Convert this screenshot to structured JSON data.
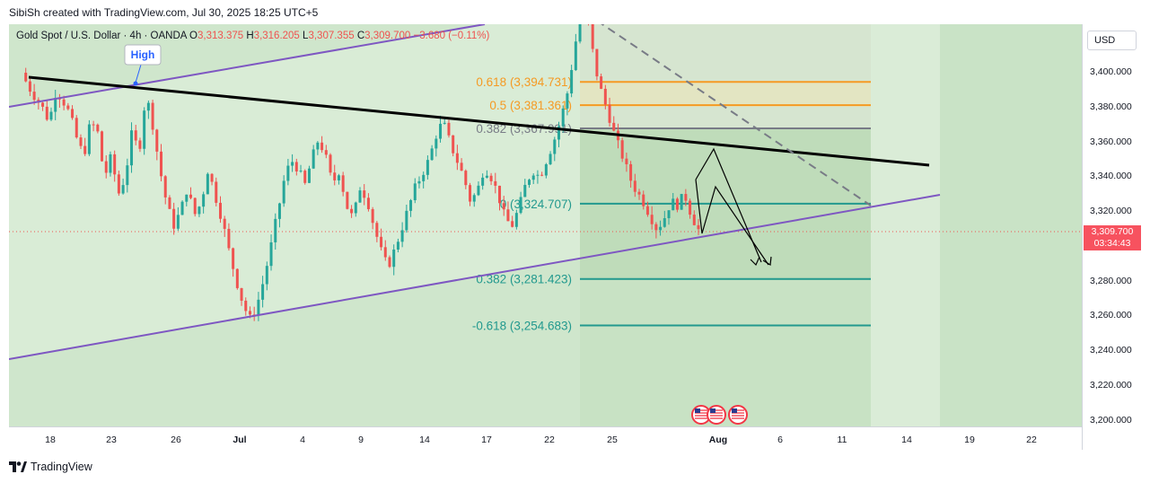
{
  "caption": "SibiSh created with TradingView.com, Jul 30, 2025 18:25 UTC+5",
  "symbol": {
    "name": "Gold Spot / U.S. Dollar · 4h · OANDA",
    "open_label": "O",
    "open": "3,313.375",
    "high_label": "H",
    "high": "3,316.205",
    "low_label": "L",
    "low": "3,307.355",
    "close_label": "C",
    "close": "3,309.700",
    "change": "−3.680 (−0.11%)"
  },
  "currency": "USD",
  "price_badge": {
    "price": "3,309.700",
    "countdown": "03:34:43"
  },
  "brand": "TradingView",
  "colors": {
    "up": "#26a69a",
    "down": "#ef5350",
    "channel": "#7e57c2",
    "trendline": "#000000",
    "fib_orange": "#f59a23",
    "fib_gray": "#787b86",
    "fib_teal": "#22998e"
  },
  "chart_data": {
    "type": "candlestick",
    "y_ticks": [
      "3,400.000",
      "3,380.000",
      "3,360.000",
      "3,340.000",
      "3,320.000",
      "3,300.000",
      "3,280.000",
      "3,260.000",
      "3,240.000",
      "3,220.000",
      "3,200.000"
    ],
    "x_ticks": [
      {
        "label": "18",
        "bold": false
      },
      {
        "label": "23",
        "bold": false
      },
      {
        "label": "26",
        "bold": false
      },
      {
        "label": "Jul",
        "bold": true
      },
      {
        "label": "4",
        "bold": false
      },
      {
        "label": "9",
        "bold": false
      },
      {
        "label": "14",
        "bold": false
      },
      {
        "label": "17",
        "bold": false
      },
      {
        "label": "22",
        "bold": false
      },
      {
        "label": "25",
        "bold": false
      },
      {
        "label": "Aug",
        "bold": true
      },
      {
        "label": "6",
        "bold": false
      },
      {
        "label": "11",
        "bold": false
      },
      {
        "label": "14",
        "bold": false
      },
      {
        "label": "19",
        "bold": false
      },
      {
        "label": "22",
        "bold": false
      }
    ],
    "annotations": {
      "high_label": "High",
      "fib_levels": [
        {
          "label": "0.618 (3,394.731)",
          "price": 3394.731,
          "color": "orange"
        },
        {
          "label": "0.5 (3,381.361)",
          "price": 3381.361,
          "color": "orange"
        },
        {
          "label": "0.382 (3,367.991)",
          "price": 3367.991,
          "color": "gray"
        },
        {
          "label": "0 (3,324.707)",
          "price": 3324.707,
          "color": "teal"
        },
        {
          "label": "0.382 (3,281.423)",
          "price": 3281.423,
          "color": "teal"
        },
        {
          "label": "-0.618 (3,254.683)",
          "price": 3254.683,
          "color": "teal"
        }
      ]
    },
    "price_path": [
      3400,
      3392,
      3386,
      3380,
      3372,
      3390,
      3384,
      3376,
      3362,
      3352,
      3372,
      3366,
      3340,
      3352,
      3330,
      3340,
      3366,
      3354,
      3388,
      3370,
      3345,
      3325,
      3312,
      3320,
      3334,
      3318,
      3325,
      3345,
      3330,
      3316,
      3298,
      3282,
      3268,
      3258,
      3265,
      3280,
      3298,
      3318,
      3338,
      3350,
      3345,
      3335,
      3350,
      3362,
      3352,
      3336,
      3344,
      3324,
      3316,
      3334,
      3328,
      3312,
      3298,
      3288,
      3298,
      3310,
      3322,
      3334,
      3342,
      3350,
      3364,
      3372,
      3360,
      3350,
      3340,
      3326,
      3332,
      3346,
      3340,
      3330,
      3316,
      3312,
      3322,
      3336,
      3344,
      3340,
      3350,
      3360,
      3372,
      3388,
      3412,
      3438,
      3430,
      3404,
      3388,
      3376,
      3362,
      3352,
      3340,
      3332,
      3326,
      3318,
      3310,
      3316,
      3326,
      3324,
      3330,
      3318,
      3309.7
    ]
  }
}
